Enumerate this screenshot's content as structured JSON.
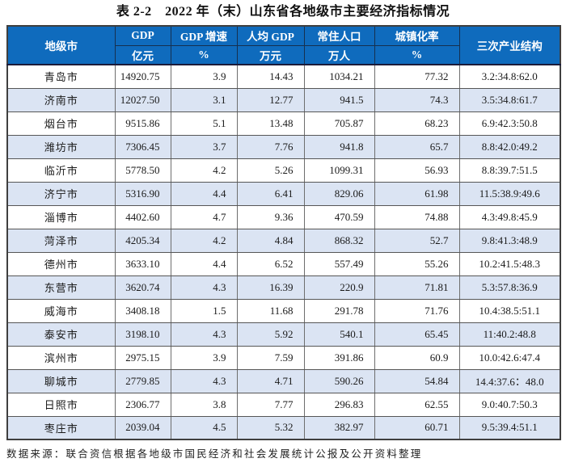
{
  "title": "表 2-2　2022 年（末）山东省各地级市主要经济指标情况",
  "colors": {
    "header_bg": "#0f6bbd",
    "header_text": "#ffffff",
    "row_alt_bg": "#dbe4f3",
    "grid_line": "#565656"
  },
  "table": {
    "header": {
      "city": "地级市",
      "groups": [
        {
          "label": "GDP",
          "unit": "亿元"
        },
        {
          "label": "GDP 增速",
          "unit": "%"
        },
        {
          "label": "人均 GDP",
          "unit": "万元"
        },
        {
          "label": "常住人口",
          "unit": "万人"
        },
        {
          "label": "城镇化率",
          "unit": "%"
        }
      ],
      "structure": "三次产业结构"
    },
    "rows": [
      {
        "city": "青岛市",
        "gdp": "14920.75",
        "growth": "3.9",
        "per_capita": "14.43",
        "population": "1034.21",
        "urbanization": "77.32",
        "structure": "3.2:34.8:62.0"
      },
      {
        "city": "济南市",
        "gdp": "12027.50",
        "growth": "3.1",
        "per_capita": "12.77",
        "population": "941.5",
        "urbanization": "74.3",
        "structure": "3.5:34.8:61.7"
      },
      {
        "city": "烟台市",
        "gdp": "9515.86",
        "growth": "5.1",
        "per_capita": "13.48",
        "population": "705.87",
        "urbanization": "68.23",
        "structure": "6.9:42.3:50.8"
      },
      {
        "city": "潍坊市",
        "gdp": "7306.45",
        "growth": "3.7",
        "per_capita": "7.76",
        "population": "941.8",
        "urbanization": "65.7",
        "structure": "8.8:42.0:49.2"
      },
      {
        "city": "临沂市",
        "gdp": "5778.50",
        "growth": "4.2",
        "per_capita": "5.26",
        "population": "1099.31",
        "urbanization": "56.93",
        "structure": "8.8:39.7:51.5"
      },
      {
        "city": "济宁市",
        "gdp": "5316.90",
        "growth": "4.4",
        "per_capita": "6.41",
        "population": "829.06",
        "urbanization": "61.98",
        "structure": "11.5:38.9:49.6"
      },
      {
        "city": "淄博市",
        "gdp": "4402.60",
        "growth": "4.7",
        "per_capita": "9.36",
        "population": "470.59",
        "urbanization": "74.88",
        "structure": "4.3:49.8:45.9"
      },
      {
        "city": "菏泽市",
        "gdp": "4205.34",
        "growth": "4.2",
        "per_capita": "4.84",
        "population": "868.32",
        "urbanization": "52.7",
        "structure": "9.8:41.3:48.9"
      },
      {
        "city": "德州市",
        "gdp": "3633.10",
        "growth": "4.4",
        "per_capita": "6.52",
        "population": "557.49",
        "urbanization": "55.26",
        "structure": "10.2:41.5:48.3"
      },
      {
        "city": "东营市",
        "gdp": "3620.74",
        "growth": "4.3",
        "per_capita": "16.39",
        "population": "220.9",
        "urbanization": "71.81",
        "structure": "5.3:57.8:36.9"
      },
      {
        "city": "威海市",
        "gdp": "3408.18",
        "growth": "1.5",
        "per_capita": "11.68",
        "population": "291.78",
        "urbanization": "71.76",
        "structure": "10.4:38.5:51.1"
      },
      {
        "city": "泰安市",
        "gdp": "3198.10",
        "growth": "4.3",
        "per_capita": "5.92",
        "population": "540.1",
        "urbanization": "65.45",
        "structure": "11:40.2:48.8"
      },
      {
        "city": "滨州市",
        "gdp": "2975.15",
        "growth": "3.9",
        "per_capita": "7.59",
        "population": "391.86",
        "urbanization": "60.9",
        "structure": "10.0:42.6:47.4"
      },
      {
        "city": "聊城市",
        "gdp": "2779.85",
        "growth": "4.3",
        "per_capita": "4.71",
        "population": "590.26",
        "urbanization": "54.84",
        "structure": "14.4:37.6：48.0"
      },
      {
        "city": "日照市",
        "gdp": "2306.77",
        "growth": "3.8",
        "per_capita": "7.77",
        "population": "296.83",
        "urbanization": "62.55",
        "structure": "9.0:40.7:50.3"
      },
      {
        "city": "枣庄市",
        "gdp": "2039.04",
        "growth": "4.5",
        "per_capita": "5.32",
        "population": "382.97",
        "urbanization": "60.71",
        "structure": "9.5:39.4:51.1"
      }
    ]
  },
  "footer": {
    "source": "数据来源：联合资信根据各地级市国民经济和社会发展统计公报及公开资料整理"
  }
}
